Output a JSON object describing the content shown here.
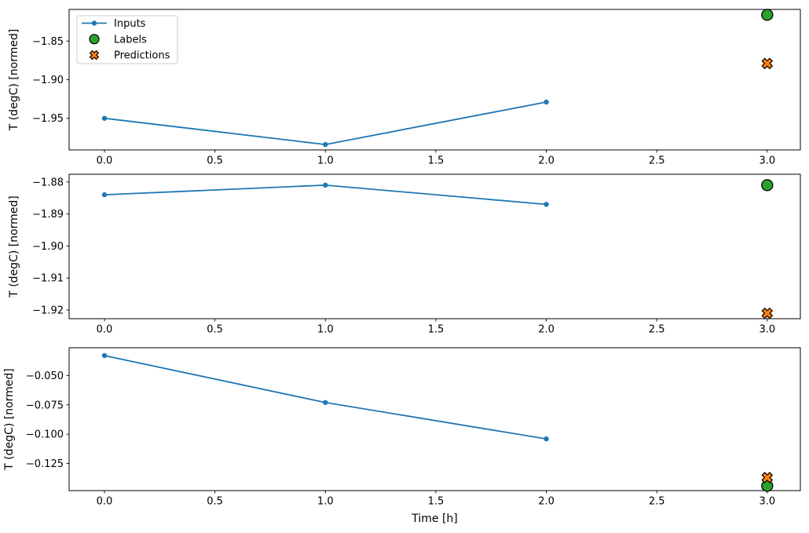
{
  "figure": {
    "background": "#ffffff",
    "spine_color": "#000000",
    "legend": {
      "position": "upper-left",
      "border_color": "#cccccc",
      "items": [
        {
          "label": "Inputs",
          "marker": "line-dot",
          "color": "#1f77b4",
          "edge_color": "#1f77b4"
        },
        {
          "label": "Labels",
          "marker": "circle",
          "color": "#2ca02c",
          "edge_color": "#000000"
        },
        {
          "label": "Predictions",
          "marker": "x",
          "color": "#ff7f0e",
          "edge_color": "#000000"
        }
      ]
    }
  },
  "chart_data": [
    {
      "type": "line",
      "title": "",
      "xlabel": "",
      "ylabel": "T (degC) [normed]",
      "xlim": [
        -0.16,
        3.15
      ],
      "ylim": [
        -1.991,
        -1.809
      ],
      "grid": false,
      "legend": true,
      "xtick_values": [
        0.0,
        0.5,
        1.0,
        1.5,
        2.0,
        2.5,
        3.0
      ],
      "xtick_labels": [
        "0.0",
        "0.5",
        "1.0",
        "1.5",
        "2.0",
        "2.5",
        "3.0"
      ],
      "ytick_values": [
        -1.85,
        -1.9,
        -1.95
      ],
      "ytick_labels": [
        "−1.85",
        "−1.90",
        "−1.95"
      ],
      "series": [
        {
          "name": "Inputs",
          "type": "line",
          "marker": "dot",
          "color": "#1f77b4",
          "x": [
            0,
            1,
            2
          ],
          "y": [
            -1.95,
            -1.984,
            -1.929
          ]
        },
        {
          "name": "Labels",
          "type": "scatter",
          "marker": "circle",
          "color": "#2ca02c",
          "edge_color": "#000000",
          "x": [
            3
          ],
          "y": [
            -1.816
          ]
        },
        {
          "name": "Predictions",
          "type": "scatter",
          "marker": "x",
          "color": "#ff7f0e",
          "edge_color": "#000000",
          "x": [
            3
          ],
          "y": [
            -1.879
          ]
        }
      ]
    },
    {
      "type": "line",
      "title": "",
      "xlabel": "",
      "ylabel": "T (degC) [normed]",
      "xlim": [
        -0.16,
        3.15
      ],
      "ylim": [
        -1.9227,
        -1.8776
      ],
      "grid": false,
      "legend": false,
      "xtick_values": [
        0.0,
        0.5,
        1.0,
        1.5,
        2.0,
        2.5,
        3.0
      ],
      "xtick_labels": [
        "0.0",
        "0.5",
        "1.0",
        "1.5",
        "2.0",
        "2.5",
        "3.0"
      ],
      "ytick_values": [
        -1.88,
        -1.89,
        -1.9,
        -1.91,
        -1.92
      ],
      "ytick_labels": [
        "−1.88",
        "−1.89",
        "−1.90",
        "−1.91",
        "−1.92"
      ],
      "series": [
        {
          "name": "Inputs",
          "type": "line",
          "marker": "dot",
          "color": "#1f77b4",
          "x": [
            0,
            1,
            2
          ],
          "y": [
            -1.884,
            -1.881,
            -1.887
          ]
        },
        {
          "name": "Labels",
          "type": "scatter",
          "marker": "circle",
          "color": "#2ca02c",
          "edge_color": "#000000",
          "x": [
            3
          ],
          "y": [
            -1.881
          ]
        },
        {
          "name": "Predictions",
          "type": "scatter",
          "marker": "x",
          "color": "#ff7f0e",
          "edge_color": "#000000",
          "x": [
            3
          ],
          "y": [
            -1.921
          ]
        }
      ]
    },
    {
      "type": "line",
      "title": "",
      "xlabel": "Time [h]",
      "ylabel": "T (degC) [normed]",
      "xlim": [
        -0.16,
        3.15
      ],
      "ylim": [
        -0.1481,
        -0.0263
      ],
      "grid": false,
      "legend": false,
      "xtick_values": [
        0.0,
        0.5,
        1.0,
        1.5,
        2.0,
        2.5,
        3.0
      ],
      "xtick_labels": [
        "0.0",
        "0.5",
        "1.0",
        "1.5",
        "2.0",
        "2.5",
        "3.0"
      ],
      "ytick_values": [
        -0.05,
        -0.075,
        -0.1,
        -0.125
      ],
      "ytick_labels": [
        "−0.050",
        "−0.075",
        "−0.100",
        "−0.125"
      ],
      "series": [
        {
          "name": "Inputs",
          "type": "line",
          "marker": "dot",
          "color": "#1f77b4",
          "x": [
            0,
            1,
            2
          ],
          "y": [
            -0.033,
            -0.073,
            -0.104
          ]
        },
        {
          "name": "Labels",
          "type": "scatter",
          "marker": "circle",
          "color": "#2ca02c",
          "edge_color": "#000000",
          "x": [
            3
          ],
          "y": [
            -0.144
          ]
        },
        {
          "name": "Predictions",
          "type": "scatter",
          "marker": "x",
          "color": "#ff7f0e",
          "edge_color": "#000000",
          "x": [
            3
          ],
          "y": [
            -0.137
          ]
        }
      ]
    }
  ]
}
